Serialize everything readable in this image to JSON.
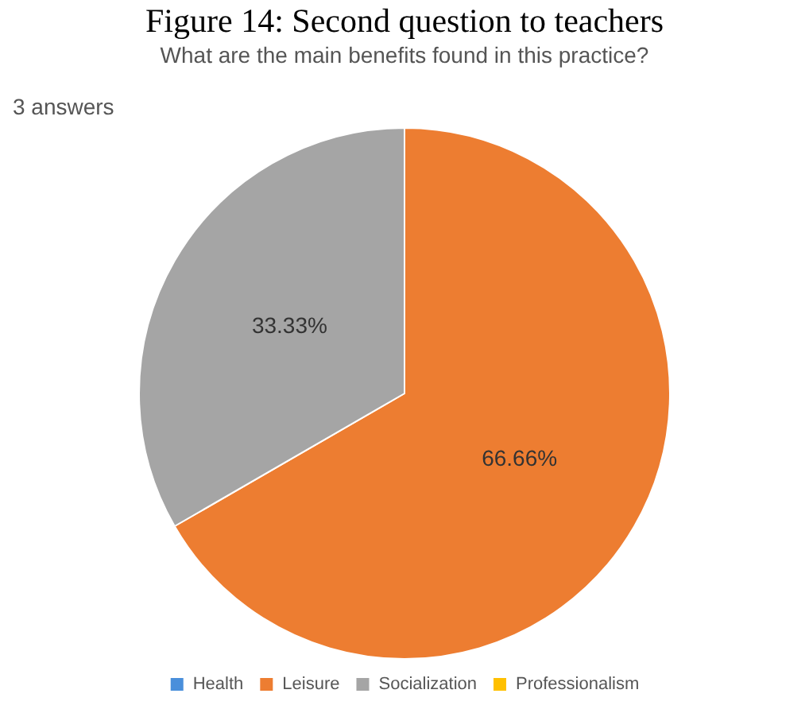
{
  "chart_data": {
    "type": "pie",
    "title": "Figure 14: Second question to teachers",
    "subtitle": "What are the main benefits found in this practice?",
    "annotations": [
      "3 answers"
    ],
    "categories": [
      "Health",
      "Leisure",
      "Socialization",
      "Professionalism"
    ],
    "values": [
      0,
      66.66,
      33.33,
      0
    ],
    "colors": [
      "#4a8fdb",
      "#ed7d31",
      "#a5a5a5",
      "#ffc000"
    ],
    "value_labels": [
      null,
      "66.66%",
      "33.33%",
      null
    ],
    "legend": "bottom"
  }
}
